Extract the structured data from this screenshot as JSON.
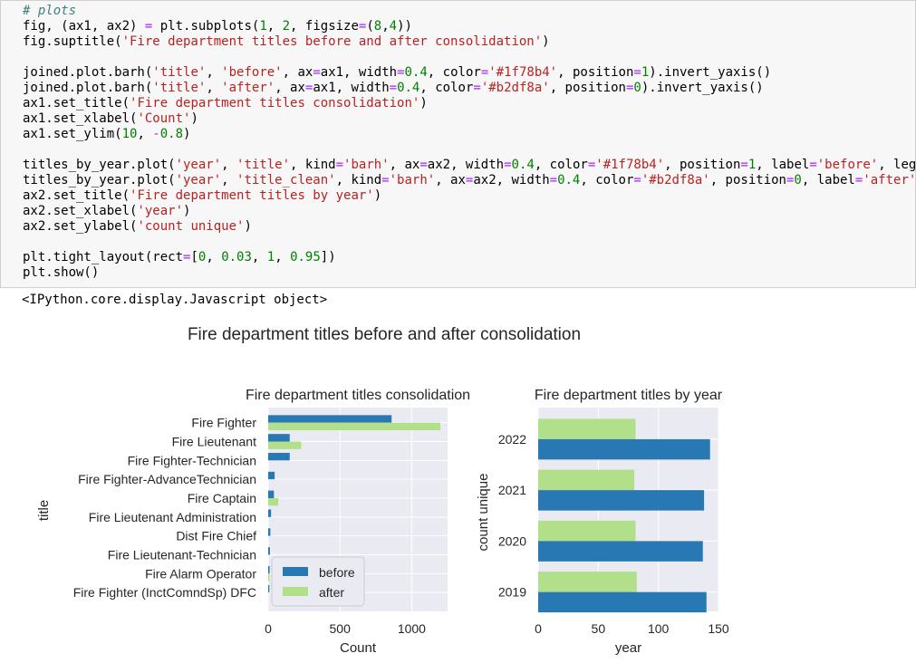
{
  "code_cell": {
    "lines": [
      [
        {
          "t": "# plots",
          "c": "comment"
        }
      ],
      [
        {
          "t": "fig, (ax1, ax2) "
        },
        {
          "t": "=",
          "c": "op"
        },
        {
          "t": " plt.subplots("
        },
        {
          "t": "1",
          "c": "number"
        },
        {
          "t": ", "
        },
        {
          "t": "2",
          "c": "number"
        },
        {
          "t": ", figsize"
        },
        {
          "t": "=",
          "c": "op"
        },
        {
          "t": "("
        },
        {
          "t": "8",
          "c": "number"
        },
        {
          "t": ","
        },
        {
          "t": "4",
          "c": "number"
        },
        {
          "t": "))"
        }
      ],
      [
        {
          "t": "fig.suptitle("
        },
        {
          "t": "'Fire department titles before and after consolidation'",
          "c": "string"
        },
        {
          "t": ")"
        }
      ],
      [
        {
          "t": ""
        }
      ],
      [
        {
          "t": "joined.plot.barh("
        },
        {
          "t": "'title'",
          "c": "string"
        },
        {
          "t": ", "
        },
        {
          "t": "'before'",
          "c": "string"
        },
        {
          "t": ", ax"
        },
        {
          "t": "=",
          "c": "op"
        },
        {
          "t": "ax1, width"
        },
        {
          "t": "=",
          "c": "op"
        },
        {
          "t": "0.4",
          "c": "number"
        },
        {
          "t": ", color"
        },
        {
          "t": "=",
          "c": "op"
        },
        {
          "t": "'#1f78b4'",
          "c": "string"
        },
        {
          "t": ", position"
        },
        {
          "t": "=",
          "c": "op"
        },
        {
          "t": "1",
          "c": "number"
        },
        {
          "t": ").invert_yaxis()"
        }
      ],
      [
        {
          "t": "joined.plot.barh("
        },
        {
          "t": "'title'",
          "c": "string"
        },
        {
          "t": ", "
        },
        {
          "t": "'after'",
          "c": "string"
        },
        {
          "t": ", ax"
        },
        {
          "t": "=",
          "c": "op"
        },
        {
          "t": "ax1, width"
        },
        {
          "t": "=",
          "c": "op"
        },
        {
          "t": "0.4",
          "c": "number"
        },
        {
          "t": ", color"
        },
        {
          "t": "=",
          "c": "op"
        },
        {
          "t": "'#b2df8a'",
          "c": "string"
        },
        {
          "t": ", position"
        },
        {
          "t": "=",
          "c": "op"
        },
        {
          "t": "0",
          "c": "number"
        },
        {
          "t": ").invert_yaxis()"
        }
      ],
      [
        {
          "t": "ax1.set_title("
        },
        {
          "t": "'Fire department titles consolidation'",
          "c": "string"
        },
        {
          "t": ")"
        }
      ],
      [
        {
          "t": "ax1.set_xlabel("
        },
        {
          "t": "'Count'",
          "c": "string"
        },
        {
          "t": ")"
        }
      ],
      [
        {
          "t": "ax1.set_ylim("
        },
        {
          "t": "10",
          "c": "number"
        },
        {
          "t": ", "
        },
        {
          "t": "-",
          "c": "op"
        },
        {
          "t": "0.8",
          "c": "number"
        },
        {
          "t": ")"
        }
      ],
      [
        {
          "t": ""
        }
      ],
      [
        {
          "t": "titles_by_year.plot("
        },
        {
          "t": "'year'",
          "c": "string"
        },
        {
          "t": ", "
        },
        {
          "t": "'title'",
          "c": "string"
        },
        {
          "t": ", kind"
        },
        {
          "t": "=",
          "c": "op"
        },
        {
          "t": "'barh'",
          "c": "string"
        },
        {
          "t": ", ax"
        },
        {
          "t": "=",
          "c": "op"
        },
        {
          "t": "ax2, width"
        },
        {
          "t": "=",
          "c": "op"
        },
        {
          "t": "0.4",
          "c": "number"
        },
        {
          "t": ", color"
        },
        {
          "t": "=",
          "c": "op"
        },
        {
          "t": "'#1f78b4'",
          "c": "string"
        },
        {
          "t": ", position"
        },
        {
          "t": "=",
          "c": "op"
        },
        {
          "t": "1",
          "c": "number"
        },
        {
          "t": ", label"
        },
        {
          "t": "=",
          "c": "op"
        },
        {
          "t": "'before'",
          "c": "string"
        },
        {
          "t": ", leg"
        }
      ],
      [
        {
          "t": "titles_by_year.plot("
        },
        {
          "t": "'year'",
          "c": "string"
        },
        {
          "t": ", "
        },
        {
          "t": "'title_clean'",
          "c": "string"
        },
        {
          "t": ", kind"
        },
        {
          "t": "=",
          "c": "op"
        },
        {
          "t": "'barh'",
          "c": "string"
        },
        {
          "t": ", ax"
        },
        {
          "t": "=",
          "c": "op"
        },
        {
          "t": "ax2, width"
        },
        {
          "t": "=",
          "c": "op"
        },
        {
          "t": "0.4",
          "c": "number"
        },
        {
          "t": ", color"
        },
        {
          "t": "=",
          "c": "op"
        },
        {
          "t": "'#b2df8a'",
          "c": "string"
        },
        {
          "t": ", position"
        },
        {
          "t": "=",
          "c": "op"
        },
        {
          "t": "0",
          "c": "number"
        },
        {
          "t": ", label"
        },
        {
          "t": "=",
          "c": "op"
        },
        {
          "t": "'after'",
          "c": "string"
        }
      ],
      [
        {
          "t": "ax2.set_title("
        },
        {
          "t": "'Fire department titles by year'",
          "c": "string"
        },
        {
          "t": ")"
        }
      ],
      [
        {
          "t": "ax2.set_xlabel("
        },
        {
          "t": "'year'",
          "c": "string"
        },
        {
          "t": ")"
        }
      ],
      [
        {
          "t": "ax2.set_ylabel("
        },
        {
          "t": "'count unique'",
          "c": "string"
        },
        {
          "t": ")"
        }
      ],
      [
        {
          "t": ""
        }
      ],
      [
        {
          "t": "plt.tight_layout(rect"
        },
        {
          "t": "=",
          "c": "op"
        },
        {
          "t": "["
        },
        {
          "t": "0",
          "c": "number"
        },
        {
          "t": ", "
        },
        {
          "t": "0.03",
          "c": "number"
        },
        {
          "t": ", "
        },
        {
          "t": "1",
          "c": "number"
        },
        {
          "t": ", "
        },
        {
          "t": "0.95",
          "c": "number"
        },
        {
          "t": "])"
        }
      ],
      [
        {
          "t": "plt.show()"
        }
      ]
    ]
  },
  "output_text": "<IPython.core.display.Javascript object>",
  "figure": {
    "suptitle": "Fire department titles before and after consolidation"
  },
  "colors": {
    "before": "#2878b4",
    "after": "#b2df8a",
    "axes_bg": "#eaeaf2",
    "grid": "#ffffff",
    "text": "#262626"
  },
  "chart_data": [
    {
      "type": "bar",
      "orientation": "horizontal",
      "title": "Fire department titles consolidation",
      "xlabel": "Count",
      "ylabel": "title",
      "categories": [
        "Fire Fighter",
        "Fire Lieutenant",
        "Fire Fighter-Technician",
        "Fire Fighter-AdvanceTechnician",
        "Fire Captain",
        "Fire Lieutenant Administration",
        "Dist Fire Chief",
        "Fire Lieutenant-Technician",
        "Fire Alarm Operator",
        "Fire Fighter (InctComndSp) DFC"
      ],
      "series": [
        {
          "name": "before",
          "values": [
            860,
            150,
            150,
            45,
            40,
            20,
            15,
            12,
            10,
            8
          ]
        },
        {
          "name": "after",
          "values": [
            1200,
            230,
            0,
            0,
            70,
            0,
            0,
            0,
            10,
            0
          ]
        }
      ],
      "xticks": [
        0,
        500,
        1000
      ],
      "xlim": [
        0,
        1250
      ],
      "grid": true,
      "legend": "lower-right"
    },
    {
      "type": "bar",
      "orientation": "horizontal",
      "title": "Fire department titles by year",
      "xlabel": "year",
      "ylabel": "count unique",
      "categories": [
        "2019",
        "2020",
        "2021",
        "2022"
      ],
      "series": [
        {
          "name": "before",
          "values": [
            140,
            137,
            138,
            143
          ]
        },
        {
          "name": "after",
          "values": [
            82,
            81,
            80,
            81
          ]
        }
      ],
      "xticks": [
        0,
        50,
        100,
        150
      ],
      "xlim": [
        0,
        150
      ],
      "grid": true
    }
  ]
}
